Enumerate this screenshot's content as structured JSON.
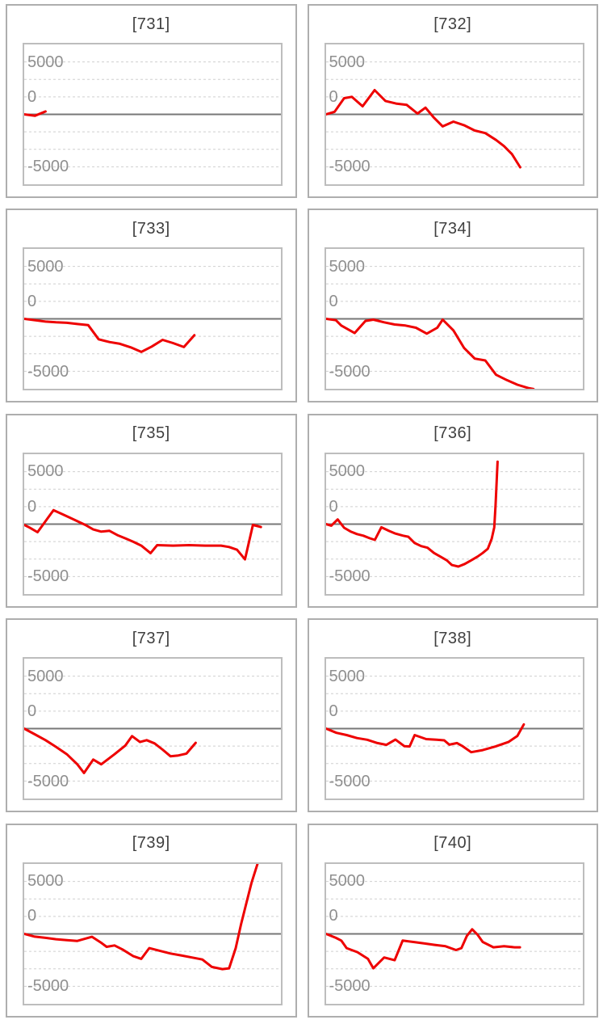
{
  "style": {
    "line_color": "#ee0000",
    "grid_dashed_color": "#cfcfcf",
    "zero_line_color": "#777777",
    "panel_border_color": "#aeaeae",
    "plot_border_color": "#bdbdbd",
    "title_color": "#3f3f3f",
    "tick_label_color": "#8f8f8f",
    "background": "#ffffff"
  },
  "axis": {
    "tick_labels": [
      "5000",
      "0",
      "-5000"
    ],
    "ylim": [
      -6700,
      6700
    ],
    "gridline_divisions": 8,
    "units_per_gridline_gap": 1667,
    "zero_line_emphasized": true,
    "x_axis_labels": "none"
  },
  "chart_data": [
    {
      "type": "line",
      "title": "[731]",
      "points": [
        [
          0,
          0
        ],
        [
          0.042,
          -130
        ],
        [
          0.083,
          280
        ]
      ]
    },
    {
      "type": "line",
      "title": "[732]",
      "points": [
        [
          0,
          0
        ],
        [
          0.033,
          250
        ],
        [
          0.07,
          1540
        ],
        [
          0.1,
          1670
        ],
        [
          0.142,
          770
        ],
        [
          0.189,
          2310
        ],
        [
          0.231,
          1280
        ],
        [
          0.272,
          1030
        ],
        [
          0.314,
          900
        ],
        [
          0.356,
          80
        ],
        [
          0.387,
          640
        ],
        [
          0.418,
          -260
        ],
        [
          0.454,
          -1150
        ],
        [
          0.496,
          -690
        ],
        [
          0.537,
          -1030
        ],
        [
          0.579,
          -1540
        ],
        [
          0.62,
          -1790
        ],
        [
          0.662,
          -2440
        ],
        [
          0.693,
          -3030
        ],
        [
          0.724,
          -3790
        ],
        [
          0.756,
          -5050
        ]
      ]
    },
    {
      "type": "line",
      "title": "[733]",
      "points": [
        [
          0,
          0
        ],
        [
          0.041,
          -130
        ],
        [
          0.083,
          -260
        ],
        [
          0.124,
          -330
        ],
        [
          0.166,
          -380
        ],
        [
          0.207,
          -490
        ],
        [
          0.249,
          -590
        ],
        [
          0.29,
          -1950
        ],
        [
          0.332,
          -2210
        ],
        [
          0.373,
          -2380
        ],
        [
          0.415,
          -2720
        ],
        [
          0.456,
          -3150
        ],
        [
          0.497,
          -2640
        ],
        [
          0.539,
          -2000
        ],
        [
          0.58,
          -2310
        ],
        [
          0.622,
          -2690
        ],
        [
          0.663,
          -1560
        ]
      ]
    },
    {
      "type": "line",
      "title": "[734]",
      "points": [
        [
          0,
          0
        ],
        [
          0.038,
          -130
        ],
        [
          0.059,
          -640
        ],
        [
          0.111,
          -1360
        ],
        [
          0.153,
          -200
        ],
        [
          0.184,
          -80
        ],
        [
          0.226,
          -330
        ],
        [
          0.267,
          -540
        ],
        [
          0.309,
          -640
        ],
        [
          0.35,
          -850
        ],
        [
          0.392,
          -1410
        ],
        [
          0.433,
          -850
        ],
        [
          0.454,
          -80
        ],
        [
          0.496,
          -1100
        ],
        [
          0.537,
          -2770
        ],
        [
          0.579,
          -3790
        ],
        [
          0.62,
          -3970
        ],
        [
          0.662,
          -5330
        ],
        [
          0.704,
          -5840
        ],
        [
          0.745,
          -6280
        ],
        [
          0.787,
          -6600
        ],
        [
          0.808,
          -6700
        ]
      ]
    },
    {
      "type": "line",
      "title": "[735]",
      "points": [
        [
          0,
          -80
        ],
        [
          0.021,
          -330
        ],
        [
          0.052,
          -770
        ],
        [
          0.114,
          1330
        ],
        [
          0.176,
          640
        ],
        [
          0.238,
          -80
        ],
        [
          0.269,
          -510
        ],
        [
          0.3,
          -720
        ],
        [
          0.332,
          -640
        ],
        [
          0.363,
          -1050
        ],
        [
          0.394,
          -1360
        ],
        [
          0.425,
          -1690
        ],
        [
          0.456,
          -2050
        ],
        [
          0.492,
          -2770
        ],
        [
          0.518,
          -2000
        ],
        [
          0.58,
          -2050
        ],
        [
          0.642,
          -2000
        ],
        [
          0.705,
          -2050
        ],
        [
          0.767,
          -2050
        ],
        [
          0.798,
          -2180
        ],
        [
          0.829,
          -2440
        ],
        [
          0.86,
          -3360
        ],
        [
          0.891,
          -80
        ],
        [
          0.922,
          -280
        ]
      ]
    },
    {
      "type": "line",
      "title": "[736]",
      "points": [
        [
          0,
          0
        ],
        [
          0.02,
          -150
        ],
        [
          0.045,
          450
        ],
        [
          0.07,
          -350
        ],
        [
          0.095,
          -700
        ],
        [
          0.12,
          -950
        ],
        [
          0.145,
          -1100
        ],
        [
          0.17,
          -1350
        ],
        [
          0.19,
          -1500
        ],
        [
          0.215,
          -300
        ],
        [
          0.245,
          -650
        ],
        [
          0.27,
          -900
        ],
        [
          0.3,
          -1100
        ],
        [
          0.32,
          -1200
        ],
        [
          0.345,
          -1800
        ],
        [
          0.37,
          -2100
        ],
        [
          0.395,
          -2250
        ],
        [
          0.42,
          -2750
        ],
        [
          0.445,
          -3100
        ],
        [
          0.47,
          -3450
        ],
        [
          0.49,
          -3900
        ],
        [
          0.515,
          -4050
        ],
        [
          0.54,
          -3800
        ],
        [
          0.565,
          -3450
        ],
        [
          0.59,
          -3100
        ],
        [
          0.61,
          -2750
        ],
        [
          0.63,
          -2350
        ],
        [
          0.645,
          -1400
        ],
        [
          0.655,
          -300
        ],
        [
          0.66,
          1800
        ],
        [
          0.668,
          5950
        ]
      ]
    },
    {
      "type": "line",
      "title": "[737]",
      "points": [
        [
          0,
          0
        ],
        [
          0.041,
          -540
        ],
        [
          0.083,
          -1100
        ],
        [
          0.124,
          -1740
        ],
        [
          0.166,
          -2440
        ],
        [
          0.207,
          -3410
        ],
        [
          0.233,
          -4230
        ],
        [
          0.269,
          -2950
        ],
        [
          0.3,
          -3410
        ],
        [
          0.352,
          -2440
        ],
        [
          0.394,
          -1610
        ],
        [
          0.42,
          -720
        ],
        [
          0.451,
          -1280
        ],
        [
          0.477,
          -1100
        ],
        [
          0.508,
          -1410
        ],
        [
          0.539,
          -2000
        ],
        [
          0.57,
          -2640
        ],
        [
          0.601,
          -2560
        ],
        [
          0.632,
          -2380
        ],
        [
          0.668,
          -1360
        ]
      ]
    },
    {
      "type": "line",
      "title": "[738]",
      "points": [
        [
          0,
          0
        ],
        [
          0.04,
          -400
        ],
        [
          0.08,
          -620
        ],
        [
          0.12,
          -900
        ],
        [
          0.16,
          -1060
        ],
        [
          0.2,
          -1380
        ],
        [
          0.235,
          -1550
        ],
        [
          0.27,
          -1050
        ],
        [
          0.305,
          -1680
        ],
        [
          0.325,
          -1700
        ],
        [
          0.345,
          -620
        ],
        [
          0.39,
          -1000
        ],
        [
          0.43,
          -1060
        ],
        [
          0.46,
          -1120
        ],
        [
          0.48,
          -1530
        ],
        [
          0.51,
          -1380
        ],
        [
          0.53,
          -1650
        ],
        [
          0.565,
          -2250
        ],
        [
          0.61,
          -2050
        ],
        [
          0.66,
          -1700
        ],
        [
          0.71,
          -1280
        ],
        [
          0.745,
          -700
        ],
        [
          0.77,
          400
        ]
      ]
    },
    {
      "type": "line",
      "title": "[739]",
      "points": [
        [
          0,
          0
        ],
        [
          0.041,
          -260
        ],
        [
          0.083,
          -380
        ],
        [
          0.124,
          -510
        ],
        [
          0.166,
          -590
        ],
        [
          0.207,
          -670
        ],
        [
          0.264,
          -280
        ],
        [
          0.3,
          -850
        ],
        [
          0.321,
          -1230
        ],
        [
          0.352,
          -1100
        ],
        [
          0.383,
          -1490
        ],
        [
          0.425,
          -2130
        ],
        [
          0.456,
          -2380
        ],
        [
          0.487,
          -1360
        ],
        [
          0.528,
          -1610
        ],
        [
          0.57,
          -1870
        ],
        [
          0.611,
          -2050
        ],
        [
          0.653,
          -2250
        ],
        [
          0.694,
          -2440
        ],
        [
          0.731,
          -3150
        ],
        [
          0.772,
          -3360
        ],
        [
          0.798,
          -3280
        ],
        [
          0.824,
          -1360
        ],
        [
          0.845,
          950
        ],
        [
          0.866,
          3000
        ],
        [
          0.886,
          4900
        ],
        [
          0.909,
          6700
        ]
      ]
    },
    {
      "type": "line",
      "title": "[740]",
      "points": [
        [
          0,
          0
        ],
        [
          0.038,
          -380
        ],
        [
          0.059,
          -640
        ],
        [
          0.08,
          -1360
        ],
        [
          0.122,
          -1740
        ],
        [
          0.163,
          -2380
        ],
        [
          0.184,
          -3280
        ],
        [
          0.226,
          -2250
        ],
        [
          0.267,
          -2510
        ],
        [
          0.298,
          -640
        ],
        [
          0.34,
          -770
        ],
        [
          0.381,
          -900
        ],
        [
          0.423,
          -1050
        ],
        [
          0.465,
          -1180
        ],
        [
          0.506,
          -1540
        ],
        [
          0.527,
          -1360
        ],
        [
          0.548,
          -200
        ],
        [
          0.569,
          440
        ],
        [
          0.59,
          -80
        ],
        [
          0.61,
          -770
        ],
        [
          0.652,
          -1280
        ],
        [
          0.693,
          -1180
        ],
        [
          0.735,
          -1280
        ],
        [
          0.755,
          -1280
        ]
      ]
    }
  ]
}
